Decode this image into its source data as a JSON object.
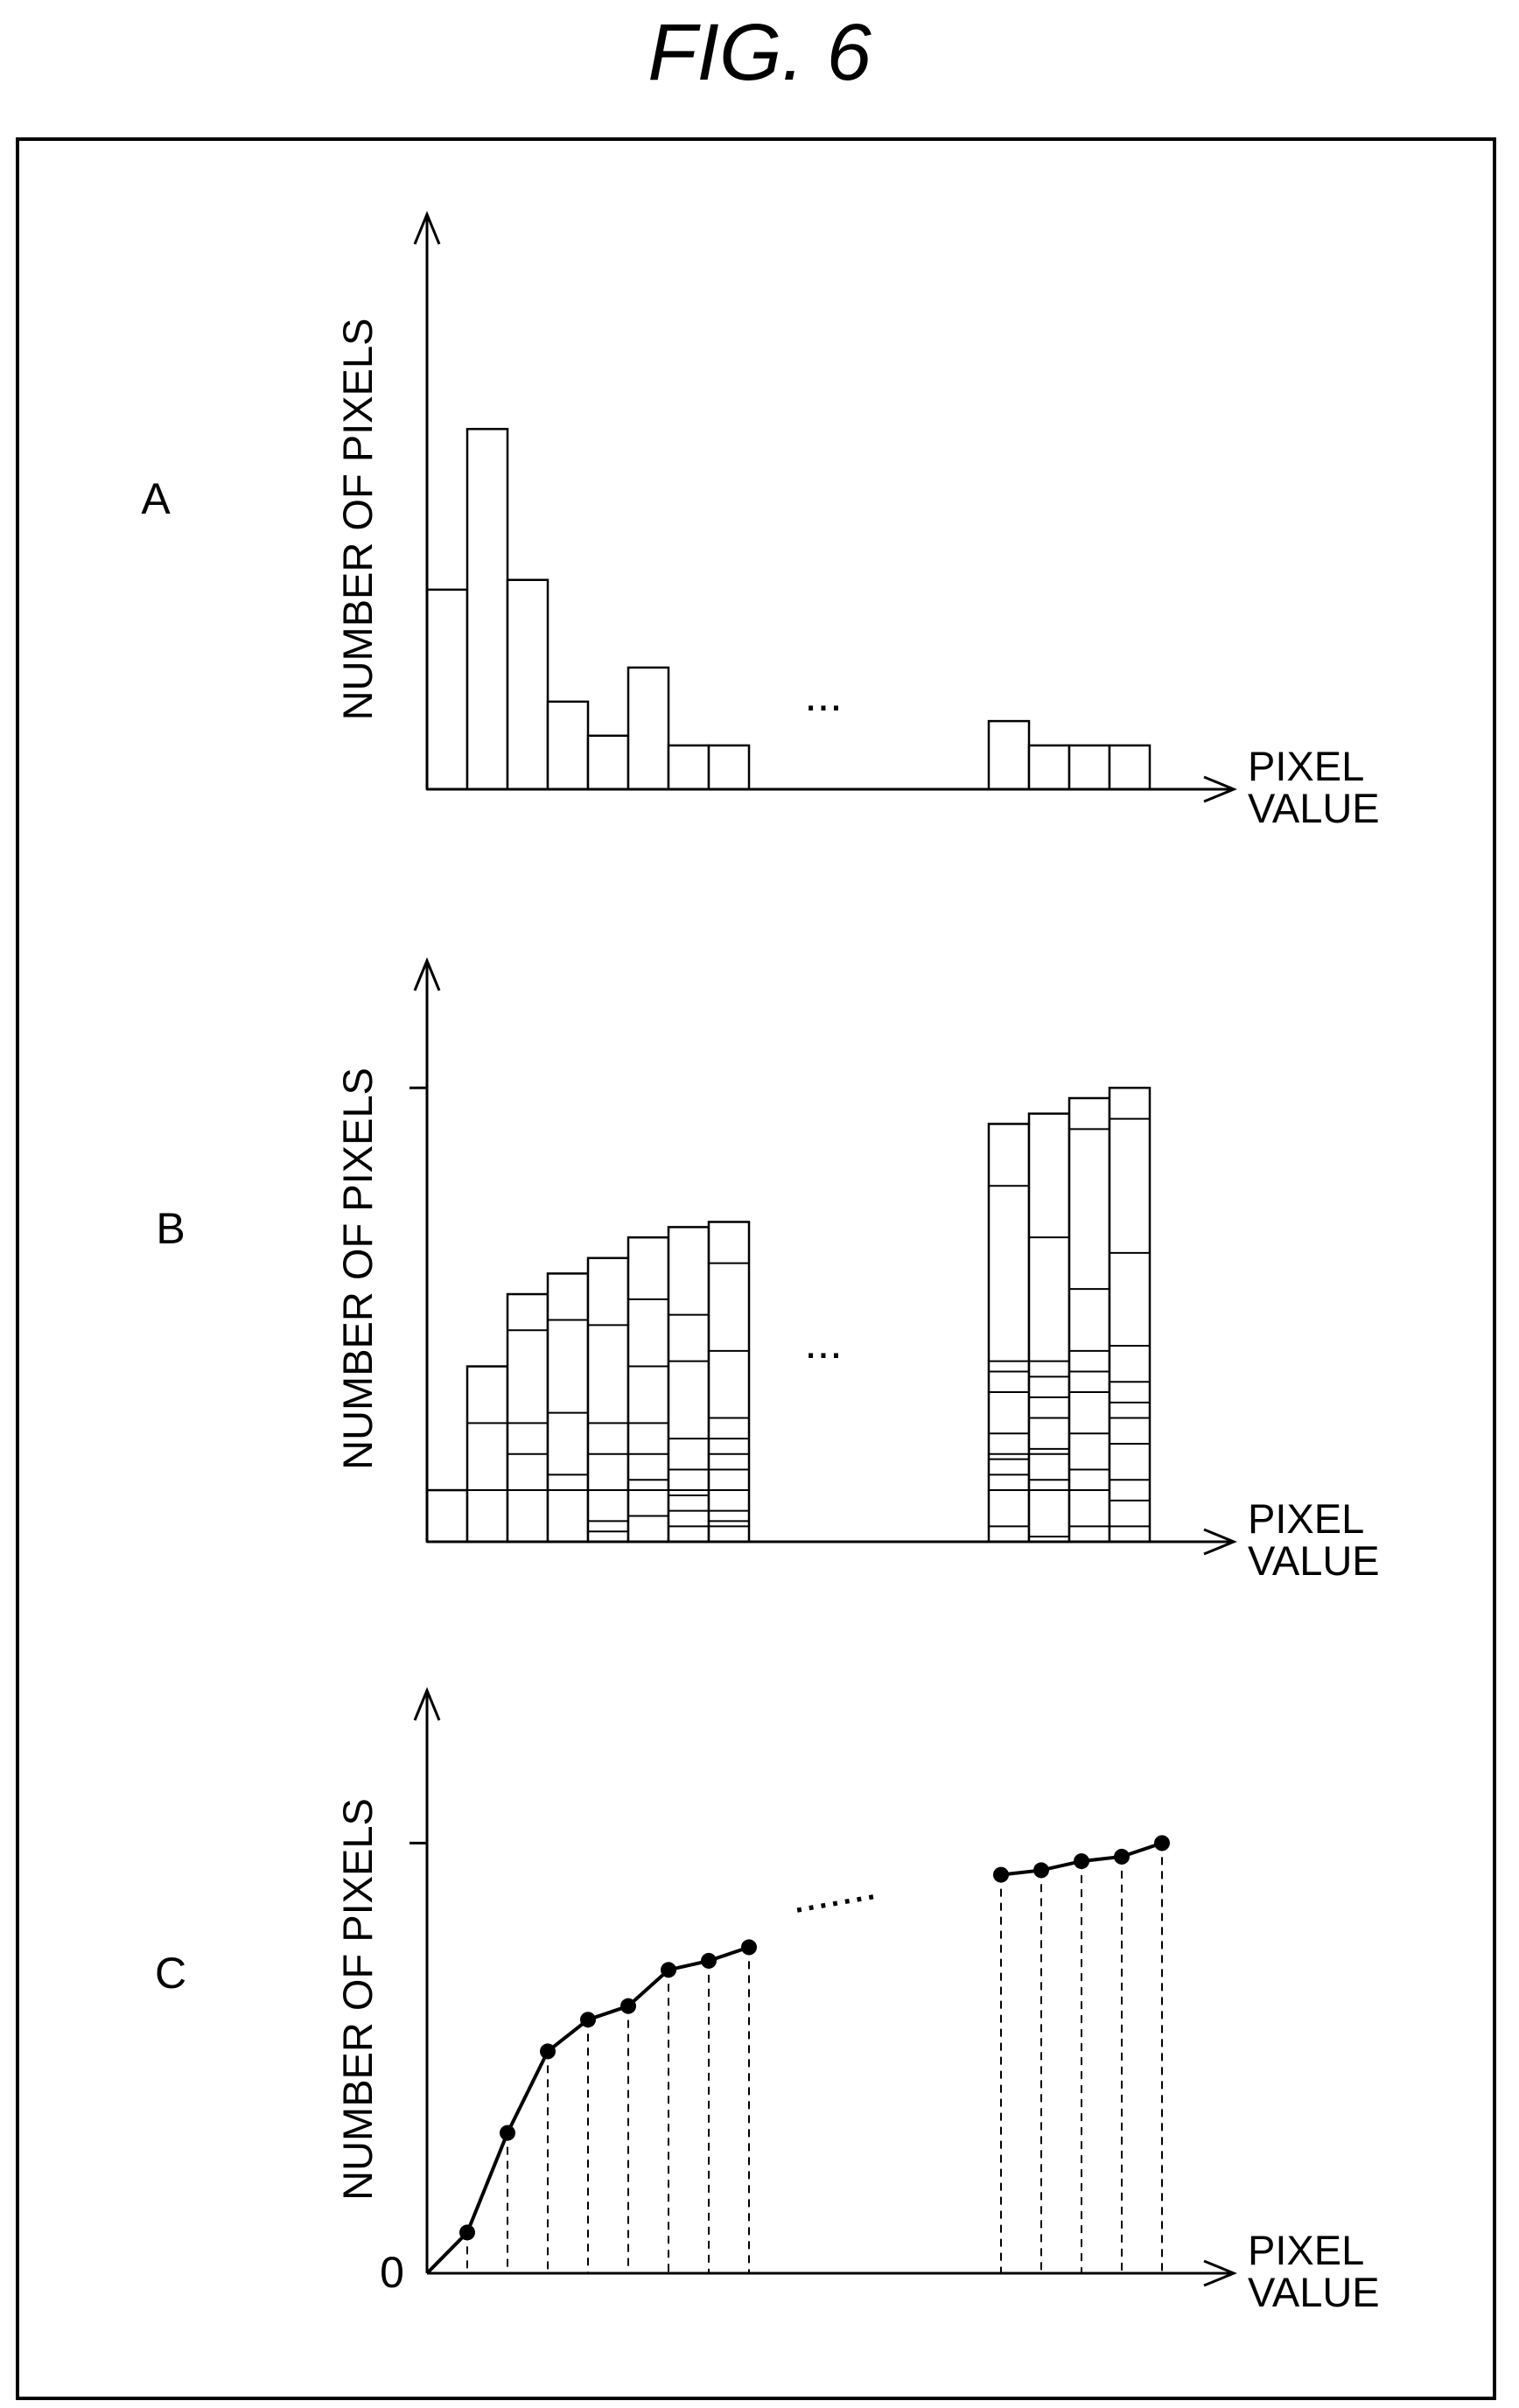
{
  "figure": {
    "title": "FIG. 6"
  },
  "chart_data": [
    {
      "type": "bar",
      "panel_label": "A",
      "ylabel": "NUMBER OF PIXELS",
      "xlabel": [
        "PIXEL",
        "VALUE"
      ],
      "ellipsis": "...",
      "left_bars": [
        4.1,
        7.4,
        4.3,
        1.8,
        1.1,
        2.5,
        0.9,
        0.9
      ],
      "right_bars": [
        1.4,
        0.9,
        0.9,
        0.9
      ],
      "ylim": [
        0,
        11
      ]
    },
    {
      "type": "bar",
      "panel_label": "B",
      "ylabel": "NUMBER OF PIXELS",
      "xlabel": [
        "PIXEL",
        "VALUE"
      ],
      "ellipsis": "...",
      "note": "stacked cumulative bars",
      "left_bars": [
        [
          1.0
        ],
        [
          1.0,
          2.3,
          3.4
        ],
        [
          1.0,
          1.7,
          2.3,
          4.1,
          4.8
        ],
        [
          1.0,
          1.3,
          2.5,
          4.3,
          5.2
        ],
        [
          0.2,
          0.4,
          1.0,
          1.7,
          2.3,
          4.2,
          5.5
        ],
        [
          0.5,
          1.0,
          1.2,
          1.7,
          2.3,
          3.4,
          4.7,
          5.9
        ],
        [
          0.3,
          0.6,
          0.9,
          1.0,
          1.4,
          2.0,
          3.5,
          4.4,
          6.1
        ],
        [
          0.3,
          0.4,
          0.6,
          1.0,
          1.4,
          1.7,
          2.0,
          2.4,
          3.7,
          5.4,
          6.2
        ]
      ],
      "right_bars": [
        [
          0.3,
          1.0,
          1.3,
          1.6,
          1.7,
          2.1,
          2.9,
          3.3,
          3.5,
          6.9,
          8.1
        ],
        [
          0.1,
          1.0,
          1.2,
          1.7,
          1.8,
          2.4,
          2.8,
          3.2,
          3.5,
          5.9,
          8.3
        ],
        [
          0.3,
          1.0,
          1.4,
          2.1,
          2.9,
          3.3,
          3.7,
          4.9,
          8.0,
          8.6
        ],
        [
          0.3,
          0.8,
          1.2,
          1.9,
          2.4,
          2.7,
          3.1,
          3.8,
          5.6,
          8.2,
          8.8
        ]
      ],
      "reference_tick": 8.8,
      "ylim": [
        0,
        10.5
      ]
    },
    {
      "type": "line",
      "panel_label": "C",
      "ylabel": "NUMBER OF PIXELS",
      "xlabel": [
        "PIXEL",
        "VALUE"
      ],
      "origin_label": "0",
      "ellipsis": ".......",
      "left_points": [
        0.0,
        0.9,
        3.1,
        4.9,
        5.6,
        5.9,
        6.7,
        6.9,
        7.2
      ],
      "right_points": [
        8.8,
        8.9,
        9.1,
        9.2,
        9.5
      ],
      "reference_tick": 9.5,
      "ylim": [
        0,
        12
      ]
    }
  ]
}
